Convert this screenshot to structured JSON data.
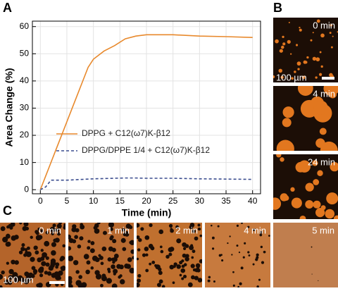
{
  "panels": {
    "a": "A",
    "b": "B",
    "c": "C"
  },
  "chart_data": {
    "type": "line",
    "xlabel": "Time (min)",
    "ylabel": "Area Change (%)",
    "x": [
      0,
      1,
      2,
      3,
      4,
      5,
      6,
      7,
      8,
      9,
      10,
      12,
      14,
      16,
      18,
      20,
      25,
      30,
      35,
      40
    ],
    "series": [
      {
        "name": "DPPG + C12(ω7)K-β12",
        "color": "#e8892c",
        "dash": false,
        "values": [
          0,
          5,
          10,
          15,
          20,
          25,
          30,
          35,
          40,
          45,
          48,
          51,
          53,
          55.5,
          56.5,
          57,
          57,
          56.5,
          56.3,
          56
        ]
      },
      {
        "name": "DPPG/DPPE 1/4 + C12(ω7)K-β12",
        "color": "#3b4d8f",
        "dash": true,
        "values": [
          0,
          1,
          3.5,
          3.5,
          3.5,
          3.5,
          3.6,
          3.7,
          3.8,
          3.9,
          4,
          4.1,
          4.2,
          4.3,
          4.3,
          4.2,
          4.2,
          4,
          3.9,
          3.8
        ]
      }
    ],
    "xlim": [
      -1.5,
      41.5
    ],
    "ylim": [
      -1.5,
      62
    ],
    "xticks": [
      0,
      5,
      10,
      15,
      20,
      25,
      30,
      35,
      40
    ],
    "yticks": [
      0,
      10,
      20,
      30,
      40,
      50,
      60
    ],
    "grid": true
  },
  "images_b": [
    "0 min",
    "4 min",
    "24 min"
  ],
  "scale_b": "100 µm",
  "images_c": [
    "0 min",
    "1 min",
    "2 min",
    "4 min",
    "5 min"
  ],
  "scale_c": "100 µm"
}
